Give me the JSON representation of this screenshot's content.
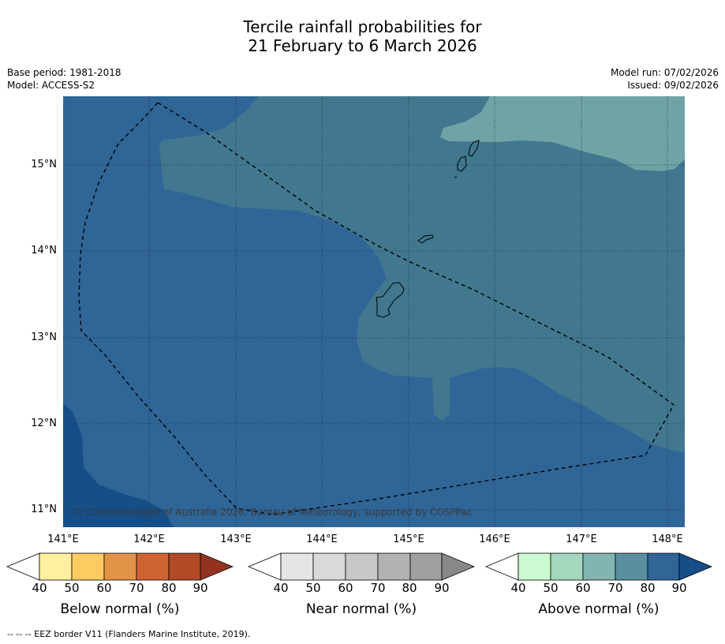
{
  "title_line1": "Tercile rainfall probabilities for",
  "title_line2": "21 February to 6 March 2026",
  "base_period": "Base period: 1981-2018",
  "model": "Model: ACCESS-S2",
  "model_run": "Model run: 07/02/2026",
  "issued": "Issued: 09/02/2026",
  "lat_labels": [
    "15°N",
    "14°N",
    "13°N",
    "12°N",
    "11°N"
  ],
  "lon_labels": [
    "141°E",
    "142°E",
    "143°E",
    "144°E",
    "145°E",
    "146°E",
    "147°E",
    "148°E"
  ],
  "copyright": "© Commonwealth of Australia 2026, Bureau of Meteorology, supported by COSPPac",
  "colorbars": [
    {
      "title": "Below normal (%)",
      "ticks": [
        "40",
        "50",
        "60",
        "70",
        "80",
        "90"
      ],
      "colors": [
        "#ffffff",
        "#fff09f",
        "#fecb63",
        "#e39347",
        "#cf6231",
        "#b24a26",
        "#943220"
      ]
    },
    {
      "title": "Near normal (%)",
      "ticks": [
        "40",
        "50",
        "60",
        "70",
        "80",
        "90"
      ],
      "colors": [
        "#ffffff",
        "#e5e5e5",
        "#d9d9d9",
        "#c8c8c8",
        "#b2b2b2",
        "#a0a0a0",
        "#888888"
      ]
    },
    {
      "title": "Above normal (%)",
      "ticks": [
        "40",
        "50",
        "60",
        "70",
        "80",
        "90"
      ],
      "colors": [
        "#ffffff",
        "#cbfad0",
        "#a5d6be",
        "#82b5b1",
        "#5a8fa0",
        "#306597",
        "#164e88"
      ]
    }
  ],
  "map_colors": {
    "above_80": "#306597",
    "above_70": "#41788f",
    "above_60": "#6fa3a6",
    "above_90": "#164e88"
  },
  "footer": "--  --  -- EEZ border V11 (Flanders Marine Institute, 2019)."
}
